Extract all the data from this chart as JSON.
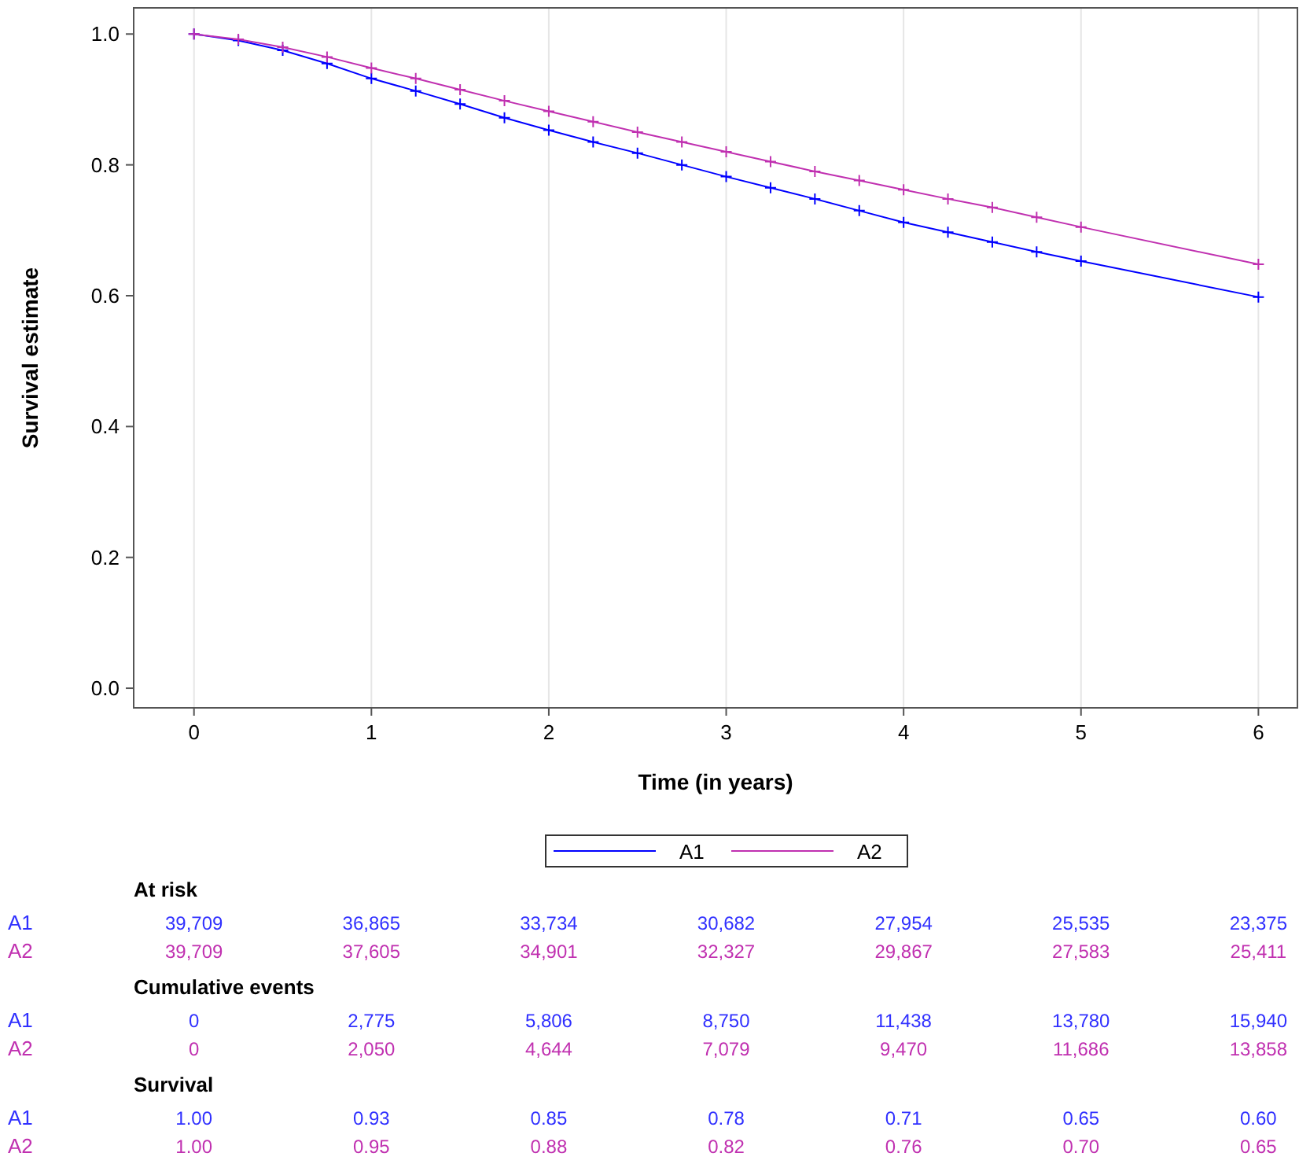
{
  "chart_data": [
    {
      "type": "line",
      "xlabel": "Time (in years)",
      "ylabel": "Survival estimate",
      "xlim": [
        -0.34,
        6.22
      ],
      "ylim": [
        -0.03,
        1.04
      ],
      "xticks": [
        0,
        1,
        2,
        3,
        4,
        5,
        6
      ],
      "yticks": [
        {
          "value": 0,
          "label": "0.0"
        },
        {
          "value": 0.2,
          "label": "0.2"
        },
        {
          "value": 0.4,
          "label": "0.4"
        },
        {
          "value": 0.6,
          "label": "0.6"
        },
        {
          "value": 0.8,
          "label": "0.8"
        },
        {
          "value": 1,
          "label": "1.0"
        }
      ],
      "grid": "x",
      "legend": "bottom",
      "marker": "cross",
      "line_style": "solid",
      "x": [
        0,
        0.25,
        0.5,
        0.75,
        1,
        1.25,
        1.5,
        1.75,
        2,
        2.25,
        2.5,
        2.75,
        3,
        3.25,
        3.5,
        3.75,
        4,
        4.25,
        4.5,
        4.75,
        5,
        6
      ],
      "series": [
        {
          "name": "A1",
          "color": "#0000ff",
          "values": [
            1.0,
            0.99,
            0.975,
            0.955,
            0.932,
            0.913,
            0.893,
            0.872,
            0.853,
            0.835,
            0.818,
            0.8,
            0.782,
            0.765,
            0.748,
            0.73,
            0.712,
            0.697,
            0.682,
            0.667,
            0.653,
            0.598
          ]
        },
        {
          "name": "A2",
          "color": "#c030b0",
          "values": [
            1.0,
            0.992,
            0.98,
            0.965,
            0.948,
            0.932,
            0.915,
            0.898,
            0.882,
            0.866,
            0.85,
            0.835,
            0.82,
            0.805,
            0.79,
            0.776,
            0.762,
            0.748,
            0.735,
            0.72,
            0.705,
            0.648
          ]
        }
      ]
    },
    {
      "type": "heatmap",
      "title": "At risk",
      "categories": [
        null,
        null,
        null,
        null,
        null,
        null,
        null
      ],
      "y_categories": [
        "A1",
        "A2"
      ],
      "colors": [
        "#3030ff",
        "#c030b0"
      ],
      "cells": [
        [
          39709,
          36865,
          33734,
          30682,
          27954,
          25535,
          23375
        ],
        [
          39709,
          37605,
          34901,
          32327,
          29867,
          27583,
          25411
        ]
      ],
      "cell_labels": [
        [
          "39,709",
          "36,865",
          "33,734",
          "30,682",
          "27,954",
          "25,535",
          "23,375"
        ],
        [
          "39,709",
          "37,605",
          "34,901",
          "32,327",
          "29,867",
          "27,583",
          "25,411"
        ]
      ]
    },
    {
      "type": "heatmap",
      "title": "Cumulative events",
      "categories": [
        null,
        null,
        null,
        null,
        null,
        null,
        null
      ],
      "y_categories": [
        "A1",
        "A2"
      ],
      "colors": [
        "#3030ff",
        "#c030b0"
      ],
      "cells": [
        [
          0,
          2775,
          5806,
          8750,
          11438,
          13780,
          15940
        ],
        [
          0,
          2050,
          4644,
          7079,
          9470,
          11686,
          13858
        ]
      ],
      "cell_labels": [
        [
          "0",
          "2,775",
          "5,806",
          "8,750",
          "11,438",
          "13,780",
          "15,940"
        ],
        [
          "0",
          "2,050",
          "4,644",
          "7,079",
          "9,470",
          "11,686",
          "13,858"
        ]
      ]
    },
    {
      "type": "heatmap",
      "title": "Survival",
      "categories": [
        null,
        null,
        null,
        null,
        null,
        null,
        null
      ],
      "y_categories": [
        "A1",
        "A2"
      ],
      "colors": [
        "#3030ff",
        "#c030b0"
      ],
      "cells": [
        [
          1.0,
          0.93,
          0.85,
          0.78,
          0.71,
          0.65,
          0.6
        ],
        [
          1.0,
          0.95,
          0.88,
          0.82,
          0.76,
          0.7,
          0.65
        ]
      ],
      "cell_labels": [
        [
          "1.00",
          "0.93",
          "0.85",
          "0.78",
          "0.71",
          "0.65",
          "0.60"
        ],
        [
          "1.00",
          "0.95",
          "0.88",
          "0.82",
          "0.76",
          "0.70",
          "0.65"
        ]
      ]
    }
  ]
}
